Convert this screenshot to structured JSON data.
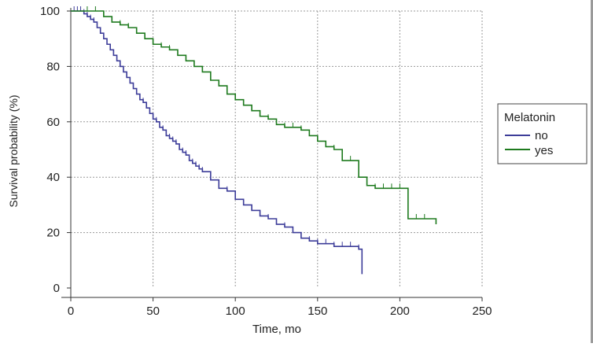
{
  "chart_data": {
    "type": "line",
    "title": "",
    "xlabel": "Time, mo",
    "ylabel": "Survival probability (%)",
    "xlim": [
      0,
      250
    ],
    "ylim": [
      0,
      100
    ],
    "xticks": [
      0,
      50,
      100,
      150,
      200,
      250
    ],
    "yticks": [
      0,
      20,
      40,
      60,
      80,
      100
    ],
    "grid": true,
    "legend": {
      "title": "Melatonin",
      "placement": "right"
    },
    "series": [
      {
        "name": "no",
        "color": "#3d3d99",
        "x": [
          0,
          2,
          4,
          6,
          8,
          10,
          12,
          14,
          16,
          18,
          20,
          22,
          24,
          26,
          28,
          30,
          32,
          34,
          36,
          38,
          40,
          42,
          44,
          46,
          48,
          50,
          52,
          54,
          56,
          58,
          60,
          62,
          64,
          66,
          68,
          70,
          72,
          74,
          76,
          78,
          80,
          85,
          90,
          95,
          100,
          105,
          110,
          115,
          120,
          125,
          130,
          135,
          140,
          145,
          150,
          155,
          160,
          165,
          170,
          175,
          177
        ],
        "y": [
          100,
          100,
          100,
          100,
          99,
          98,
          97,
          96,
          94,
          92,
          90,
          88,
          86,
          84,
          82,
          80,
          78,
          76,
          74,
          72,
          70,
          68,
          67,
          65,
          63,
          61,
          60,
          58,
          57,
          55,
          54,
          53,
          52,
          50,
          49,
          48,
          46,
          45,
          44,
          43,
          42,
          39,
          36,
          35,
          32,
          30,
          28,
          26,
          25,
          23,
          22,
          20,
          18,
          17,
          16,
          16,
          15,
          15,
          15,
          14,
          5
        ]
      },
      {
        "name": "yes",
        "color": "#1e7a1e",
        "x": [
          0,
          10,
          15,
          20,
          25,
          30,
          35,
          40,
          45,
          50,
          55,
          60,
          65,
          70,
          75,
          80,
          85,
          90,
          95,
          100,
          105,
          110,
          115,
          120,
          125,
          130,
          135,
          140,
          145,
          150,
          155,
          160,
          165,
          170,
          175,
          180,
          185,
          190,
          195,
          200,
          205,
          210,
          215,
          222
        ],
        "y": [
          100,
          100,
          100,
          98,
          96,
          95,
          94,
          92,
          90,
          88,
          87,
          86,
          84,
          82,
          80,
          78,
          75,
          73,
          70,
          68,
          66,
          64,
          62,
          61,
          59,
          58,
          58,
          57,
          55,
          53,
          51,
          50,
          46,
          46,
          40,
          37,
          36,
          36,
          36,
          36,
          25,
          25,
          25,
          23
        ]
      }
    ]
  }
}
